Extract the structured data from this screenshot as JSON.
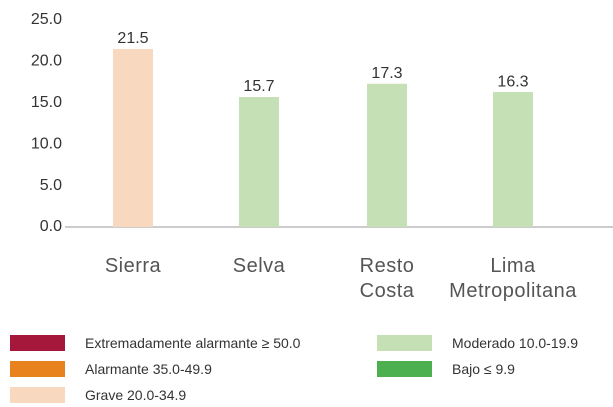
{
  "chart_data": {
    "type": "bar",
    "categories": [
      "Sierra",
      "Selva",
      "Resto Costa",
      "Lima Metropolitana"
    ],
    "values": [
      21.5,
      15.7,
      17.3,
      16.3
    ],
    "colors": [
      "#f8d9c0",
      "#c5e0b4",
      "#c5e0b4",
      "#c5e0b4"
    ],
    "ylim": [
      0,
      25
    ],
    "yticks": [
      {
        "value": 0,
        "label": "0.0"
      },
      {
        "value": 5,
        "label": "5.0"
      },
      {
        "value": 10,
        "label": "10.0"
      },
      {
        "value": 15,
        "label": "15.0"
      },
      {
        "value": 20,
        "label": "20.0"
      },
      {
        "value": 25,
        "label": "25.0"
      }
    ],
    "legend": [
      {
        "label": "Extremadamente alarmante ≥ 50.0",
        "color": "#a6173c"
      },
      {
        "label": "Alarmante 35.0-49.9",
        "color": "#e8821e"
      },
      {
        "label": "Grave 20.0-34.9",
        "color": "#f8d9c0"
      },
      {
        "label": "Moderado 10.0-19.9",
        "color": "#c5e0b4"
      },
      {
        "label": "Bajo ≤ 9.9",
        "color": "#4caf50"
      }
    ]
  }
}
